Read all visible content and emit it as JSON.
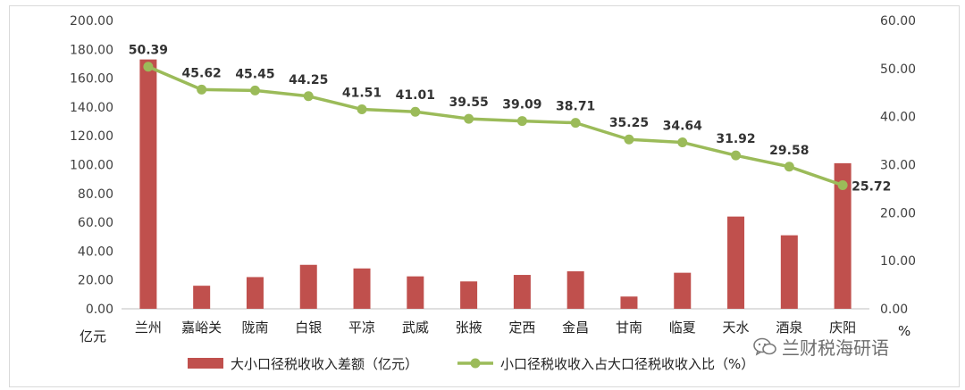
{
  "chart_data": {
    "type": "bar+line",
    "categories": [
      "兰州",
      "嘉峪关",
      "陇南",
      "白银",
      "平凉",
      "武威",
      "张掖",
      "定西",
      "金昌",
      "甘南",
      "临夏",
      "天水",
      "酒泉",
      "庆阳"
    ],
    "series": [
      {
        "name": "大小口径税收收入差额（亿元）",
        "type": "bar",
        "axis": "left",
        "color": "#c0504d",
        "values": [
          173,
          16,
          22,
          30.5,
          28,
          22.5,
          19,
          23.5,
          26,
          8.5,
          25,
          64,
          51,
          101
        ]
      },
      {
        "name": "小口径税收收入占大口径税收收入比（%）",
        "type": "line",
        "axis": "right",
        "color": "#9bbb59",
        "values": [
          50.39,
          45.62,
          45.45,
          44.25,
          41.51,
          41.01,
          39.55,
          39.09,
          38.71,
          35.25,
          34.64,
          31.92,
          29.58,
          25.72
        ],
        "labels": [
          "50.39",
          "45.62",
          "45.45",
          "44.25",
          "41.51",
          "41.01",
          "39.55",
          "39.09",
          "38.71",
          "35.25",
          "34.64",
          "31.92",
          "29.58",
          "25.72"
        ]
      }
    ],
    "y_left": {
      "range": [
        0,
        200
      ],
      "ticks": [
        "0.00",
        "20.00",
        "40.00",
        "60.00",
        "80.00",
        "100.00",
        "120.00",
        "140.00",
        "160.00",
        "180.00",
        "200.00"
      ],
      "unit": "亿元"
    },
    "y_right": {
      "range": [
        0,
        60
      ],
      "ticks": [
        "0.00",
        "10.00",
        "20.00",
        "30.00",
        "40.00",
        "50.00",
        "60.00"
      ],
      "unit": "%"
    },
    "grid": false,
    "legend": "bottom"
  },
  "watermark": {
    "text": "兰财税海研语",
    "icon": "wechat-icon"
  }
}
